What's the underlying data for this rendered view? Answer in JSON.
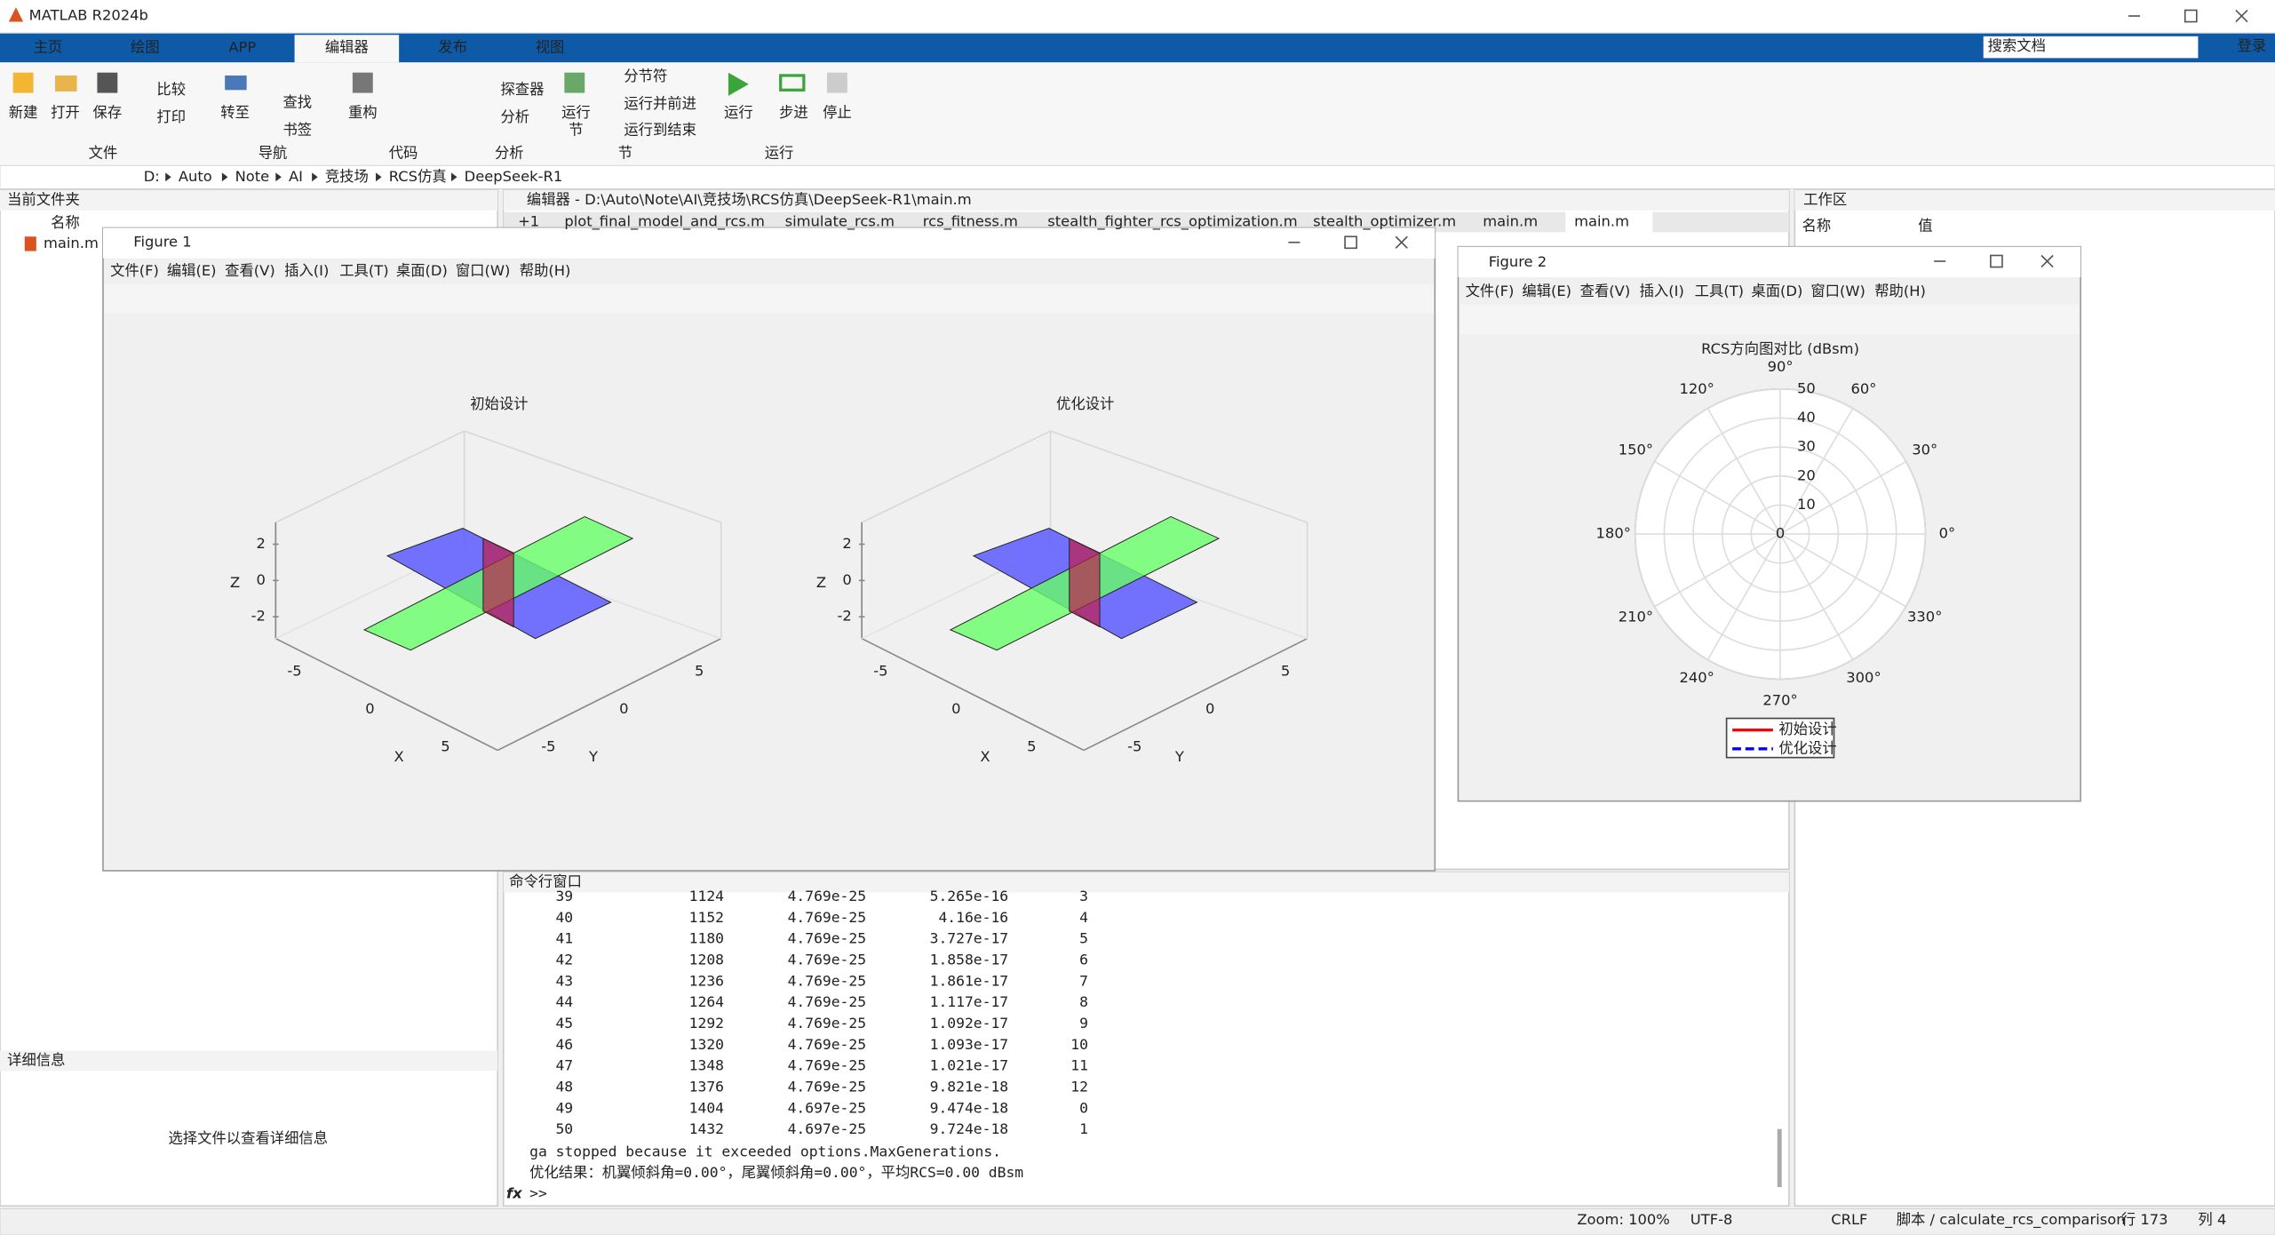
{
  "window": {
    "title": "MATLAB R2024b"
  },
  "ribbon": {
    "tabs": [
      "主页",
      "绘图",
      "APP",
      "编辑器",
      "发布",
      "视图"
    ],
    "active_tab": 3,
    "search_placeholder": "搜索文档",
    "login": "登录",
    "buttons": [
      "新建",
      "打开",
      "保存",
      "比较",
      "打印",
      "转至",
      "查找",
      "书签",
      "重构",
      "探查器",
      "分析",
      "运行",
      "节",
      "分节符",
      "运行并前进",
      "运行到结束",
      "运行",
      "步进",
      "停止"
    ],
    "groups": [
      "文件",
      "导航",
      "代码",
      "分析",
      "节",
      "运行"
    ]
  },
  "address": {
    "path": [
      "D:",
      "Auto",
      "Note",
      "AI",
      "竞技场",
      "RCS仿真",
      "DeepSeek-R1"
    ]
  },
  "current_folder": {
    "title": "当前文件夹",
    "column": "名称",
    "files": [
      "main.m"
    ]
  },
  "details": {
    "title": "详细信息",
    "message": "选择文件以查看详细信息"
  },
  "editor": {
    "title": "编辑器 - D:\\Auto\\Note\\AI\\竞技场\\RCS仿真\\DeepSeek-R1\\main.m",
    "tabs": [
      "+1",
      "plot_final_model_and_rcs.m",
      "simulate_rcs.m",
      "rcs_fitness.m",
      "stealth_fighter_rcs_optimization.m",
      "stealth_optimizer.m",
      "main.m",
      "main.m"
    ],
    "active_tab": 7
  },
  "workspace": {
    "title": "工作区",
    "columns": [
      "名称",
      "值"
    ]
  },
  "figure1": {
    "title": "Figure 1",
    "menu": [
      "文件(F)",
      "编辑(E)",
      "查看(V)",
      "插入(I)",
      "工具(T)",
      "桌面(D)",
      "窗口(W)",
      "帮助(H)"
    ],
    "axes": [
      {
        "title": "初始设计",
        "xlabel": "X",
        "ylabel": "Y",
        "zlabel": "Z",
        "xticks": [
          -5,
          0,
          5
        ],
        "yticks": [
          -5,
          0,
          5
        ],
        "zticks": [
          -2,
          0,
          2
        ]
      },
      {
        "title": "优化设计",
        "xlabel": "X",
        "ylabel": "Y",
        "zlabel": "Z",
        "xticks": [
          -5,
          0,
          5
        ],
        "yticks": [
          -5,
          0,
          5
        ],
        "zticks": [
          -2,
          0,
          2
        ]
      }
    ]
  },
  "figure2": {
    "title": "Figure 2",
    "menu": [
      "文件(F)",
      "编辑(E)",
      "查看(V)",
      "插入(I)",
      "工具(T)",
      "桌面(D)",
      "窗口(W)",
      "帮助(H)"
    ],
    "polar": {
      "title": "RCS方向图对比 (dBsm)",
      "rlim": [
        0,
        50
      ],
      "rticks": [
        0,
        10,
        20,
        30,
        40,
        50
      ],
      "thetaticks": [
        {
          "value": 0,
          "label": "0°"
        },
        {
          "value": 30,
          "label": "30°"
        },
        {
          "value": 60,
          "label": "60°"
        },
        {
          "value": 90,
          "label": "90°"
        },
        {
          "value": 120,
          "label": "120°"
        },
        {
          "value": 150,
          "label": "150°"
        },
        {
          "value": 180,
          "label": "180°"
        },
        {
          "value": 210,
          "label": "210°"
        },
        {
          "value": 240,
          "label": "240°"
        },
        {
          "value": 270,
          "label": "270°"
        },
        {
          "value": 300,
          "label": "300°"
        },
        {
          "value": 330,
          "label": "330°"
        }
      ],
      "legend": [
        {
          "name": "初始设计",
          "color": "#ff0000",
          "dash": false
        },
        {
          "name": "优化设计",
          "color": "#0000ff",
          "dash": true
        }
      ]
    }
  },
  "command_window": {
    "title": "命令行窗口",
    "rows": [
      [
        "39",
        "1124",
        "4.769e-25",
        "5.265e-16",
        "3"
      ],
      [
        "40",
        "1152",
        "4.769e-25",
        "4.16e-16",
        "4"
      ],
      [
        "41",
        "1180",
        "4.769e-25",
        "3.727e-17",
        "5"
      ],
      [
        "42",
        "1208",
        "4.769e-25",
        "1.858e-17",
        "6"
      ],
      [
        "43",
        "1236",
        "4.769e-25",
        "1.861e-17",
        "7"
      ],
      [
        "44",
        "1264",
        "4.769e-25",
        "1.117e-17",
        "8"
      ],
      [
        "45",
        "1292",
        "4.769e-25",
        "1.092e-17",
        "9"
      ],
      [
        "46",
        "1320",
        "4.769e-25",
        "1.093e-17",
        "10"
      ],
      [
        "47",
        "1348",
        "4.769e-25",
        "1.021e-17",
        "11"
      ],
      [
        "48",
        "1376",
        "4.769e-25",
        "9.821e-18",
        "12"
      ],
      [
        "49",
        "1404",
        "4.697e-25",
        "9.474e-18",
        "0"
      ],
      [
        "50",
        "1432",
        "4.697e-25",
        "9.724e-18",
        "1"
      ]
    ],
    "messages": [
      "ga stopped because it exceeded options.MaxGenerations.",
      "优化结果：机翼倾斜角=0.00°，尾翼倾斜角=0.00°，平均RCS=0.00 dBsm"
    ],
    "prompt_icon": "fx",
    "prompt": ">>"
  },
  "status_bar": [
    "Zoom: 100%",
    "UTF-8",
    "CRLF",
    "脚本 / calculate_rcs_comparison",
    "行 173",
    "列 4"
  ]
}
